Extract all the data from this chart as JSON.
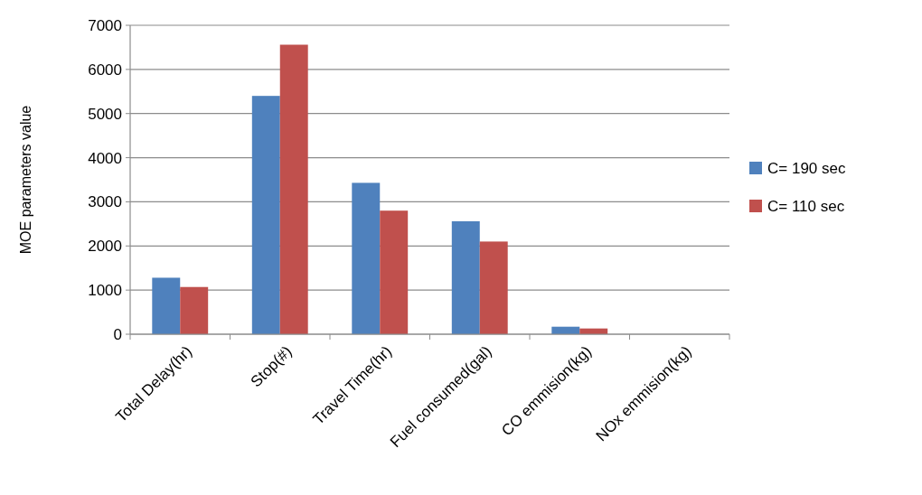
{
  "chart_data": {
    "type": "bar",
    "ylabel": "MOE parameters value",
    "categories": [
      "Total  Delay(hr)",
      "Stop(#)",
      "Travel Time(hr)",
      "Fuel consumed(gal)",
      "CO emmision(kg)",
      "NOx  emmision(kg)"
    ],
    "series": [
      {
        "name": "C= 190 sec",
        "color": "#4f81bd",
        "values": [
          1280,
          5400,
          3430,
          2560,
          170,
          0
        ]
      },
      {
        "name": "C= 110 sec",
        "color": "#c0504d",
        "values": [
          1070,
          6560,
          2800,
          2100,
          130,
          0
        ]
      }
    ],
    "ylim": [
      0,
      7000
    ],
    "yticks": [
      0,
      1000,
      2000,
      3000,
      4000,
      5000,
      6000,
      7000
    ],
    "grid": "y",
    "legend": "right"
  }
}
